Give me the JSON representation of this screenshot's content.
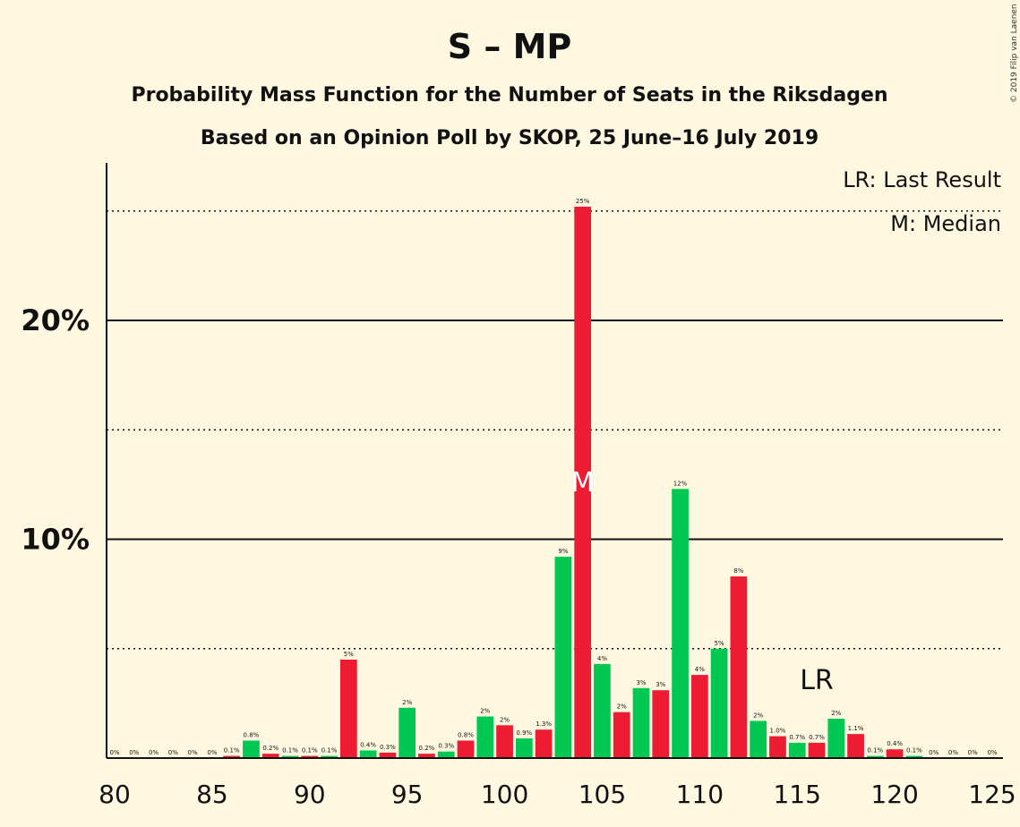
{
  "title": "S – MP",
  "subtitle1": "Probability Mass Function for the Number of Seats in the Riksdagen",
  "subtitle2": "Based on an Opinion Poll by SKOP, 25 June–16 July 2019",
  "copyright": "© 2019 Filip van Laenen",
  "legend": {
    "last_result": "LR: Last Result",
    "median": "M: Median"
  },
  "colors": {
    "green": "#00C853",
    "red": "#EE1C33",
    "background": "#FFF8E1"
  },
  "chart_data": {
    "type": "bar",
    "x": [
      80,
      81,
      82,
      83,
      84,
      85,
      86,
      87,
      88,
      89,
      90,
      91,
      92,
      93,
      94,
      95,
      96,
      97,
      98,
      99,
      100,
      101,
      102,
      103,
      104,
      105,
      106,
      107,
      108,
      109,
      110,
      111,
      112,
      113,
      114,
      115,
      116,
      117,
      118,
      119,
      120,
      121,
      122,
      123,
      124,
      125
    ],
    "values": [
      0,
      0,
      0,
      0,
      0,
      0,
      0.1,
      0.8,
      0.2,
      0.1,
      0.1,
      0.1,
      4.5,
      0.35,
      0.25,
      2.3,
      0.2,
      0.3,
      0.8,
      1.9,
      1.5,
      0.9,
      1.3,
      9.2,
      25.2,
      4.3,
      2.1,
      3.2,
      3.1,
      12.3,
      3.8,
      5.0,
      8.3,
      1.7,
      1.0,
      0.7,
      0.7,
      1.8,
      1.1,
      0.1,
      0.4,
      0.1,
      0,
      0,
      0,
      0
    ],
    "labels": [
      "0%",
      "0%",
      "0%",
      "0%",
      "0%",
      "0%",
      "0.1%",
      "0.8%",
      "0.2%",
      "0.1%",
      "0.1%",
      "0.1%",
      "5%",
      "0.4%",
      "0.3%",
      "2%",
      "0.2%",
      "0.3%",
      "0.8%",
      "2%",
      "2%",
      "0.9%",
      "1.3%",
      "9%",
      "25%",
      "4%",
      "2%",
      "3%",
      "3%",
      "12%",
      "4%",
      "5%",
      "8%",
      "2%",
      "1.0%",
      "0.7%",
      "0.7%",
      "2%",
      "1.1%",
      "0.1%",
      "0.4%",
      "0.1%",
      "0%",
      "0%",
      "0%",
      "0%"
    ],
    "colors": [
      "green",
      "green",
      "red",
      "green",
      "green",
      "green",
      "red",
      "green",
      "red",
      "green",
      "red",
      "green",
      "red",
      "green",
      "red",
      "green",
      "red",
      "green",
      "red",
      "green",
      "red",
      "green",
      "red",
      "green",
      "red",
      "green",
      "red",
      "green",
      "red",
      "green",
      "red",
      "green",
      "red",
      "green",
      "red",
      "green",
      "red",
      "green",
      "red",
      "green",
      "red",
      "green",
      "red",
      "green",
      "red",
      "green"
    ],
    "median": 104,
    "last_result": 116,
    "median_label": "M",
    "last_result_label": "LR",
    "xticks": [
      80,
      85,
      90,
      95,
      100,
      105,
      110,
      115,
      120,
      125
    ],
    "xtick_labels": [
      "80",
      "85",
      "90",
      "95",
      "100",
      "105",
      "110",
      "115",
      "120",
      "125"
    ],
    "yticks_major": [
      10,
      20
    ],
    "ytick_labels": [
      "10%",
      "20%"
    ],
    "yticks_minor": [
      5,
      15,
      25
    ],
    "ylim": [
      0,
      27.2
    ],
    "xlim": [
      80,
      125
    ]
  }
}
